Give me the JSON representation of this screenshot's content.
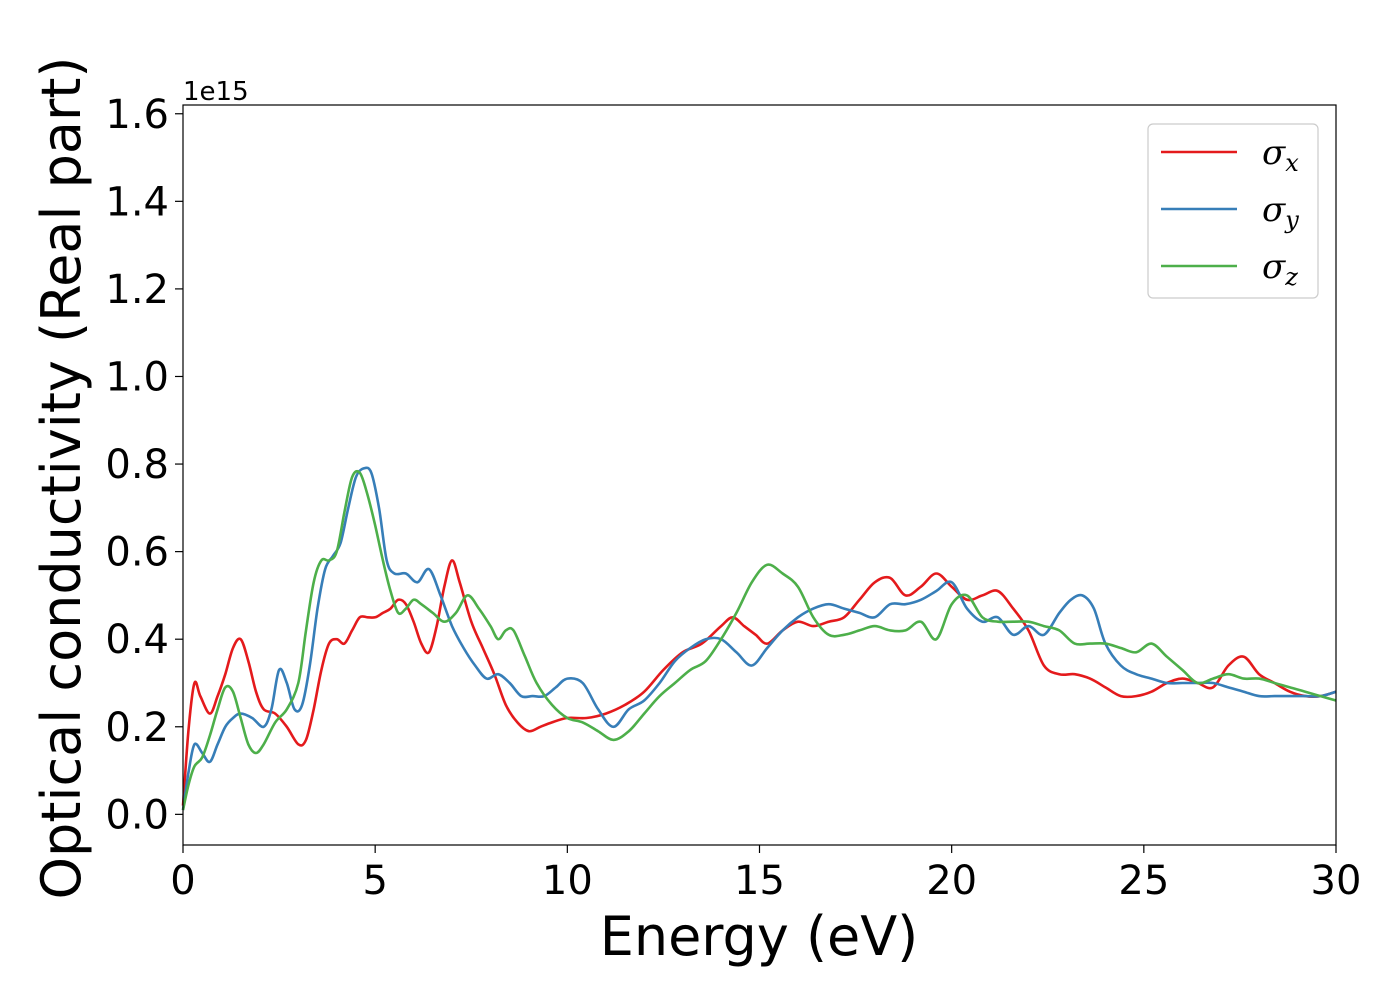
{
  "chart_data": {
    "type": "line",
    "xlabel": "Energy (eV)",
    "ylabel": "Optical conductivity (Real part)",
    "y_offset_label": "1e15",
    "xlim": [
      0,
      30
    ],
    "ylim": [
      -0.07,
      1.62
    ],
    "xticks": [
      0,
      5,
      10,
      15,
      20,
      25,
      30
    ],
    "xtick_labels": [
      "0",
      "5",
      "10",
      "15",
      "20",
      "25",
      "30"
    ],
    "yticks": [
      0.0,
      0.2,
      0.4,
      0.6,
      0.8,
      1.0,
      1.2,
      1.4,
      1.6
    ],
    "ytick_labels": [
      "0.0",
      "0.2",
      "0.4",
      "0.6",
      "0.8",
      "1.0",
      "1.2",
      "1.4",
      "1.6"
    ],
    "grid": false,
    "legend_position": "top-right",
    "series": [
      {
        "name": "σ",
        "subscript": "x",
        "color": "#e41a1c",
        "x": [
          0,
          0.15,
          0.3,
          0.45,
          0.7,
          0.9,
          1.1,
          1.3,
          1.5,
          1.7,
          1.9,
          2.1,
          2.4,
          2.7,
          3.0,
          3.2,
          3.4,
          3.6,
          3.8,
          4.0,
          4.2,
          4.4,
          4.6,
          4.8,
          5.0,
          5.2,
          5.4,
          5.6,
          5.8,
          6.0,
          6.2,
          6.4,
          6.6,
          6.8,
          7.0,
          7.2,
          7.5,
          7.8,
          8.1,
          8.4,
          8.7,
          9.0,
          9.3,
          9.6,
          10.0,
          10.5,
          11.0,
          11.5,
          12.0,
          12.5,
          13.0,
          13.5,
          14.0,
          14.3,
          14.6,
          14.9,
          15.2,
          15.6,
          16.0,
          16.4,
          16.8,
          17.2,
          17.6,
          18.0,
          18.4,
          18.8,
          19.2,
          19.6,
          20.0,
          20.4,
          20.8,
          21.2,
          21.6,
          22.0,
          22.4,
          22.8,
          23.2,
          23.6,
          24.0,
          24.4,
          24.8,
          25.2,
          25.6,
          26.0,
          26.4,
          26.8,
          27.2,
          27.6,
          28.0,
          28.4,
          28.8,
          29.2,
          29.6,
          30.0
        ],
        "values": [
          0.02,
          0.2,
          0.3,
          0.27,
          0.23,
          0.27,
          0.32,
          0.38,
          0.4,
          0.35,
          0.28,
          0.24,
          0.23,
          0.2,
          0.16,
          0.17,
          0.24,
          0.33,
          0.39,
          0.4,
          0.39,
          0.42,
          0.45,
          0.45,
          0.45,
          0.46,
          0.47,
          0.49,
          0.48,
          0.44,
          0.39,
          0.37,
          0.43,
          0.52,
          0.58,
          0.53,
          0.44,
          0.38,
          0.32,
          0.25,
          0.21,
          0.19,
          0.2,
          0.21,
          0.22,
          0.22,
          0.23,
          0.25,
          0.28,
          0.33,
          0.37,
          0.39,
          0.43,
          0.45,
          0.43,
          0.41,
          0.39,
          0.42,
          0.44,
          0.43,
          0.44,
          0.45,
          0.49,
          0.53,
          0.54,
          0.5,
          0.52,
          0.55,
          0.52,
          0.49,
          0.5,
          0.51,
          0.47,
          0.42,
          0.34,
          0.32,
          0.32,
          0.31,
          0.29,
          0.27,
          0.27,
          0.28,
          0.3,
          0.31,
          0.3,
          0.29,
          0.34,
          0.36,
          0.32,
          0.3,
          0.28,
          0.27,
          0.27,
          0.28
        ]
      },
      {
        "name": "σ",
        "subscript": "y",
        "color": "#377eb8",
        "x": [
          0,
          0.15,
          0.3,
          0.5,
          0.7,
          0.9,
          1.1,
          1.3,
          1.5,
          1.8,
          2.1,
          2.3,
          2.5,
          2.7,
          2.9,
          3.1,
          3.3,
          3.5,
          3.7,
          3.9,
          4.1,
          4.3,
          4.5,
          4.7,
          4.9,
          5.1,
          5.3,
          5.5,
          5.8,
          6.1,
          6.4,
          6.7,
          7.0,
          7.3,
          7.6,
          7.9,
          8.2,
          8.5,
          8.8,
          9.1,
          9.4,
          9.7,
          10.0,
          10.4,
          10.8,
          11.2,
          11.6,
          12.0,
          12.4,
          12.8,
          13.2,
          13.6,
          14.0,
          14.4,
          14.8,
          15.2,
          15.6,
          16.0,
          16.4,
          16.8,
          17.2,
          17.6,
          18.0,
          18.4,
          18.8,
          19.2,
          19.6,
          20.0,
          20.4,
          20.8,
          21.2,
          21.6,
          22.0,
          22.4,
          22.8,
          23.1,
          23.4,
          23.7,
          24.0,
          24.4,
          24.8,
          25.2,
          25.6,
          26.0,
          26.4,
          26.8,
          27.2,
          27.6,
          28.0,
          28.4,
          28.8,
          29.2,
          29.6,
          30.0
        ],
        "values": [
          0.01,
          0.1,
          0.16,
          0.14,
          0.12,
          0.16,
          0.2,
          0.22,
          0.23,
          0.22,
          0.2,
          0.24,
          0.33,
          0.3,
          0.24,
          0.25,
          0.34,
          0.47,
          0.56,
          0.59,
          0.62,
          0.7,
          0.77,
          0.79,
          0.78,
          0.7,
          0.58,
          0.55,
          0.55,
          0.53,
          0.56,
          0.5,
          0.43,
          0.38,
          0.34,
          0.31,
          0.32,
          0.3,
          0.27,
          0.27,
          0.27,
          0.29,
          0.31,
          0.3,
          0.24,
          0.2,
          0.24,
          0.26,
          0.3,
          0.35,
          0.38,
          0.4,
          0.4,
          0.37,
          0.34,
          0.38,
          0.42,
          0.45,
          0.47,
          0.48,
          0.47,
          0.46,
          0.45,
          0.48,
          0.48,
          0.49,
          0.51,
          0.53,
          0.47,
          0.44,
          0.45,
          0.41,
          0.43,
          0.41,
          0.46,
          0.49,
          0.5,
          0.47,
          0.39,
          0.34,
          0.32,
          0.31,
          0.3,
          0.3,
          0.3,
          0.3,
          0.29,
          0.28,
          0.27,
          0.27,
          0.27,
          0.27,
          0.27,
          0.28
        ]
      },
      {
        "name": "σ",
        "subscript": "z",
        "color": "#4daf4a",
        "x": [
          0,
          0.15,
          0.3,
          0.5,
          0.7,
          0.9,
          1.1,
          1.3,
          1.5,
          1.7,
          1.9,
          2.1,
          2.4,
          2.7,
          3.0,
          3.2,
          3.4,
          3.6,
          3.8,
          4.0,
          4.2,
          4.4,
          4.6,
          4.8,
          5.0,
          5.2,
          5.4,
          5.6,
          5.8,
          6.0,
          6.2,
          6.5,
          6.8,
          7.1,
          7.4,
          7.7,
          8.0,
          8.2,
          8.4,
          8.6,
          8.9,
          9.2,
          9.6,
          10.0,
          10.4,
          10.8,
          11.2,
          11.6,
          12.0,
          12.4,
          12.8,
          13.2,
          13.6,
          14.0,
          14.4,
          14.8,
          15.2,
          15.6,
          16.0,
          16.4,
          16.8,
          17.2,
          17.6,
          18.0,
          18.4,
          18.8,
          19.2,
          19.6,
          20.0,
          20.4,
          20.8,
          21.2,
          21.6,
          22.0,
          22.4,
          22.8,
          23.2,
          23.6,
          24.0,
          24.4,
          24.8,
          25.2,
          25.6,
          26.0,
          26.4,
          26.8,
          27.2,
          27.6,
          28.0,
          28.4,
          28.8,
          29.2,
          29.6,
          30.0
        ],
        "values": [
          0.01,
          0.07,
          0.11,
          0.13,
          0.18,
          0.24,
          0.29,
          0.28,
          0.22,
          0.16,
          0.14,
          0.16,
          0.21,
          0.24,
          0.3,
          0.42,
          0.53,
          0.58,
          0.58,
          0.6,
          0.69,
          0.77,
          0.78,
          0.73,
          0.66,
          0.58,
          0.51,
          0.46,
          0.47,
          0.49,
          0.48,
          0.46,
          0.44,
          0.46,
          0.5,
          0.47,
          0.43,
          0.4,
          0.42,
          0.42,
          0.36,
          0.3,
          0.25,
          0.22,
          0.21,
          0.19,
          0.17,
          0.19,
          0.23,
          0.27,
          0.3,
          0.33,
          0.35,
          0.4,
          0.46,
          0.53,
          0.57,
          0.55,
          0.52,
          0.45,
          0.41,
          0.41,
          0.42,
          0.43,
          0.42,
          0.42,
          0.44,
          0.4,
          0.48,
          0.5,
          0.45,
          0.44,
          0.44,
          0.44,
          0.43,
          0.42,
          0.39,
          0.39,
          0.39,
          0.38,
          0.37,
          0.39,
          0.36,
          0.33,
          0.3,
          0.31,
          0.32,
          0.31,
          0.31,
          0.3,
          0.29,
          0.28,
          0.27,
          0.26
        ]
      }
    ]
  }
}
